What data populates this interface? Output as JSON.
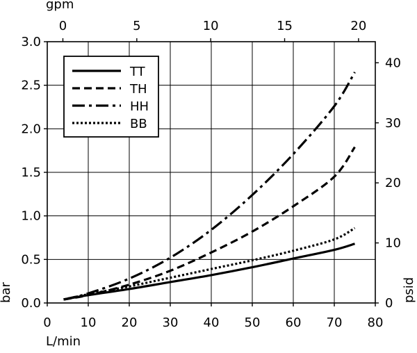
{
  "chart_data": {
    "type": "line",
    "xlabel": "L/min",
    "x2label": "gpm",
    "ylabel": "bar",
    "y2label": "psid",
    "xlim": [
      0,
      80
    ],
    "ylim": [
      0,
      3.0
    ],
    "x2lim": [
      -1.0565,
      21.1335
    ],
    "y2lim": [
      0,
      43.5114
    ],
    "grid": true,
    "legend_position": "top-left",
    "x_ticks": [
      "0",
      "10",
      "20",
      "30",
      "40",
      "50",
      "60",
      "70",
      "80"
    ],
    "y_ticks": [
      "0.0",
      "0.5",
      "1.0",
      "1.5",
      "2.0",
      "2.5",
      "3.0"
    ],
    "x2_ticks": [
      "0",
      "5",
      "10",
      "15",
      "20"
    ],
    "y2_ticks": [
      "0",
      "10",
      "20",
      "30",
      "40"
    ],
    "x_tick_values": [
      0,
      10,
      20,
      30,
      40,
      50,
      60,
      70,
      80
    ],
    "y_tick_values": [
      0,
      0.5,
      1.0,
      1.5,
      2.0,
      2.5,
      3.0
    ],
    "x2_tick_values": [
      0,
      5,
      10,
      15,
      20
    ],
    "y2_tick_values": [
      0,
      10,
      20,
      30,
      40
    ],
    "series": [
      {
        "name": "TT",
        "style": "solid",
        "x": [
          4,
          10,
          20,
          30,
          40,
          50,
          60,
          70,
          75
        ],
        "y": [
          0.04,
          0.09,
          0.16,
          0.24,
          0.32,
          0.41,
          0.51,
          0.61,
          0.68
        ]
      },
      {
        "name": "TH",
        "style": "dashed",
        "x": [
          4,
          10,
          20,
          30,
          40,
          50,
          60,
          70,
          75
        ],
        "y": [
          0.04,
          0.09,
          0.21,
          0.37,
          0.58,
          0.82,
          1.11,
          1.45,
          1.79
        ]
      },
      {
        "name": "HH",
        "style": "dashdot",
        "x": [
          4,
          10,
          20,
          30,
          40,
          50,
          60,
          70,
          75
        ],
        "y": [
          0.04,
          0.11,
          0.28,
          0.52,
          0.84,
          1.24,
          1.71,
          2.26,
          2.65
        ]
      },
      {
        "name": "BB",
        "style": "dotted",
        "x": [
          4,
          10,
          20,
          30,
          40,
          50,
          60,
          70,
          75
        ],
        "y": [
          0.04,
          0.1,
          0.19,
          0.29,
          0.39,
          0.49,
          0.6,
          0.73,
          0.86
        ]
      }
    ]
  }
}
